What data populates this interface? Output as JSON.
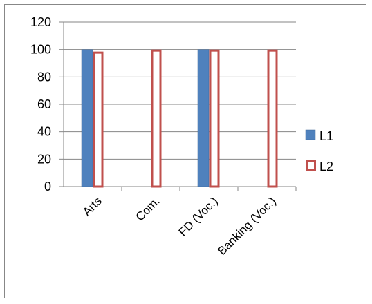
{
  "chart_data": {
    "type": "bar",
    "categories": [
      "Arts",
      "Com.",
      "FD (Voc.)",
      "Banking (Voc.)"
    ],
    "series": [
      {
        "name": "L1",
        "values": [
          100,
          0,
          100,
          0
        ],
        "fill": "#4f81bd",
        "stroke": "#3a6496",
        "style": "solid"
      },
      {
        "name": "L2",
        "values": [
          98.5,
          100,
          100,
          100
        ],
        "fill": "#ffffff",
        "stroke": "#c0504d",
        "style": "outlined"
      }
    ],
    "ylim": [
      0,
      120
    ],
    "yticks": [
      0,
      20,
      40,
      60,
      80,
      100,
      120
    ],
    "grid": true,
    "legend": "right",
    "title": "",
    "xlabel": "",
    "ylabel": ""
  }
}
